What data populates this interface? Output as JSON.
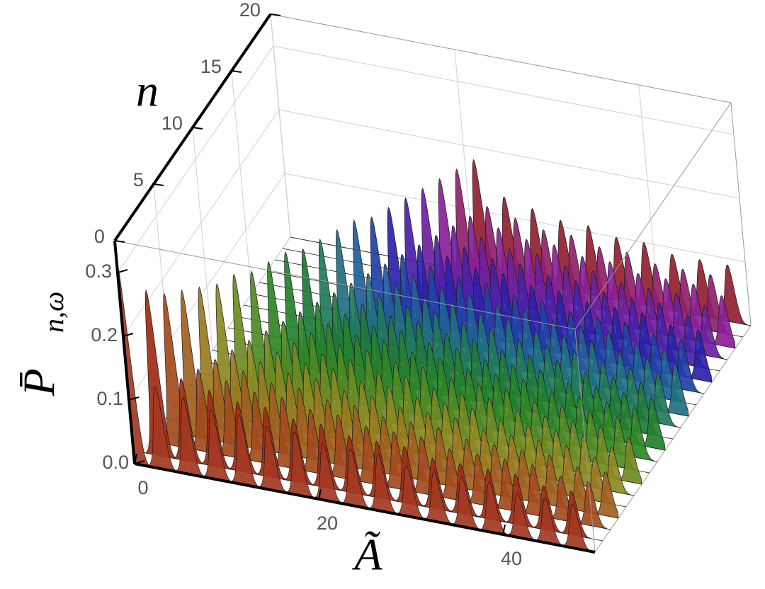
{
  "chart_data": {
    "type": "ridge3d",
    "xlabel": "Ã",
    "ylabel": "n",
    "zlabel": "P̄",
    "zlabel_sub": "n,ω",
    "xlim": [
      0,
      50
    ],
    "ylim": [
      0,
      20
    ],
    "zlim": [
      0,
      0.35
    ],
    "xticks": [
      0,
      20,
      40
    ],
    "yticks": [
      0,
      5,
      10,
      15,
      20
    ],
    "zticks": [
      {
        "value": 0,
        "label": "0.0"
      },
      0.1,
      0.2,
      0.3
    ],
    "grid": true,
    "series": [
      {
        "n": 0,
        "color": "#a33a22",
        "x": [
          0,
          3,
          6,
          9,
          12,
          15,
          18,
          21,
          24,
          27,
          30,
          33,
          36,
          39,
          42,
          45,
          48
        ],
        "values": [
          0.32,
          0.13,
          0.12,
          0.11,
          0.11,
          0.1,
          0.1,
          0.09,
          0.09,
          0.09,
          0.08,
          0.08,
          0.08,
          0.08,
          0.07,
          0.07,
          0.07
        ]
      },
      {
        "n": 1,
        "color": "#9e2a14",
        "x": [
          2,
          5,
          8,
          11,
          14,
          17,
          20,
          23,
          26,
          29,
          32,
          35,
          38,
          41,
          44,
          47
        ],
        "values": [
          0.26,
          0.13,
          0.12,
          0.11,
          0.11,
          0.1,
          0.1,
          0.09,
          0.09,
          0.09,
          0.08,
          0.08,
          0.08,
          0.08,
          0.07,
          0.07
        ]
      },
      {
        "n": 2,
        "color": "#a34a1c",
        "x": [
          3,
          6,
          9,
          12,
          15,
          18,
          21,
          24,
          27,
          30,
          33,
          36,
          39,
          42,
          45,
          48
        ],
        "values": [
          0.24,
          0.13,
          0.12,
          0.11,
          0.11,
          0.1,
          0.1,
          0.09,
          0.09,
          0.09,
          0.08,
          0.08,
          0.08,
          0.08,
          0.07,
          0.07
        ]
      },
      {
        "n": 3,
        "color": "#a0601e",
        "x": [
          4,
          7,
          10,
          13,
          16,
          19,
          22,
          25,
          28,
          31,
          34,
          37,
          40,
          43,
          46,
          49
        ],
        "values": [
          0.23,
          0.13,
          0.12,
          0.11,
          0.11,
          0.1,
          0.1,
          0.09,
          0.09,
          0.09,
          0.08,
          0.08,
          0.08,
          0.08,
          0.07,
          0.07
        ]
      },
      {
        "n": 4,
        "color": "#9a7a20",
        "x": [
          5,
          8,
          11,
          14,
          17,
          20,
          23,
          26,
          29,
          32,
          35,
          38,
          41,
          44,
          47
        ],
        "values": [
          0.22,
          0.13,
          0.12,
          0.11,
          0.11,
          0.1,
          0.1,
          0.09,
          0.09,
          0.09,
          0.08,
          0.08,
          0.08,
          0.08,
          0.07
        ]
      },
      {
        "n": 5,
        "color": "#8a8a22",
        "x": [
          6,
          9,
          12,
          15,
          18,
          21,
          24,
          27,
          30,
          33,
          36,
          39,
          42,
          45,
          48
        ],
        "values": [
          0.21,
          0.13,
          0.12,
          0.11,
          0.11,
          0.1,
          0.1,
          0.09,
          0.09,
          0.09,
          0.08,
          0.08,
          0.08,
          0.08,
          0.07
        ]
      },
      {
        "n": 6,
        "color": "#6f8a22",
        "x": [
          7,
          10,
          13,
          16,
          19,
          22,
          25,
          28,
          31,
          34,
          37,
          40,
          43,
          46,
          49
        ],
        "values": [
          0.21,
          0.13,
          0.12,
          0.11,
          0.11,
          0.1,
          0.1,
          0.09,
          0.09,
          0.09,
          0.08,
          0.08,
          0.08,
          0.08,
          0.07
        ]
      },
      {
        "n": 7,
        "color": "#4f8a24",
        "x": [
          8,
          11,
          14,
          17,
          20,
          23,
          26,
          29,
          32,
          35,
          38,
          41,
          44,
          47
        ],
        "values": [
          0.2,
          0.13,
          0.12,
          0.11,
          0.11,
          0.1,
          0.1,
          0.09,
          0.09,
          0.09,
          0.08,
          0.08,
          0.08,
          0.08
        ]
      },
      {
        "n": 8,
        "color": "#2f8626",
        "x": [
          9,
          12,
          15,
          18,
          21,
          24,
          27,
          30,
          33,
          36,
          39,
          42,
          45,
          48
        ],
        "values": [
          0.2,
          0.13,
          0.12,
          0.11,
          0.11,
          0.1,
          0.1,
          0.09,
          0.09,
          0.09,
          0.08,
          0.08,
          0.08,
          0.08
        ]
      },
      {
        "n": 9,
        "color": "#23802c",
        "x": [
          10,
          13,
          16,
          19,
          22,
          25,
          28,
          31,
          34,
          37,
          40,
          43,
          46,
          49
        ],
        "values": [
          0.2,
          0.13,
          0.12,
          0.11,
          0.11,
          0.1,
          0.1,
          0.09,
          0.09,
          0.09,
          0.08,
          0.08,
          0.08,
          0.08
        ]
      },
      {
        "n": 10,
        "color": "#1f7a3a",
        "x": [
          11,
          14,
          17,
          20,
          23,
          26,
          29,
          32,
          35,
          38,
          41,
          44,
          47
        ],
        "values": [
          0.19,
          0.13,
          0.12,
          0.11,
          0.11,
          0.1,
          0.1,
          0.09,
          0.09,
          0.09,
          0.08,
          0.08,
          0.08
        ]
      },
      {
        "n": 11,
        "color": "#1f7a5a",
        "x": [
          12,
          15,
          18,
          21,
          24,
          27,
          30,
          33,
          36,
          39,
          42,
          45,
          48
        ],
        "values": [
          0.19,
          0.13,
          0.12,
          0.11,
          0.11,
          0.1,
          0.1,
          0.09,
          0.09,
          0.09,
          0.08,
          0.08,
          0.08
        ]
      },
      {
        "n": 12,
        "color": "#1f7080",
        "x": [
          13,
          16,
          19,
          22,
          25,
          28,
          31,
          34,
          37,
          40,
          43,
          46,
          49
        ],
        "values": [
          0.19,
          0.13,
          0.12,
          0.11,
          0.11,
          0.1,
          0.1,
          0.09,
          0.09,
          0.09,
          0.08,
          0.08,
          0.08
        ]
      },
      {
        "n": 13,
        "color": "#1f5e9a",
        "x": [
          14,
          17,
          20,
          23,
          26,
          29,
          32,
          35,
          38,
          41,
          44,
          47
        ],
        "values": [
          0.19,
          0.13,
          0.12,
          0.11,
          0.11,
          0.1,
          0.1,
          0.09,
          0.09,
          0.09,
          0.08,
          0.08
        ]
      },
      {
        "n": 14,
        "color": "#1f40a8",
        "x": [
          15,
          18,
          21,
          24,
          27,
          30,
          33,
          36,
          39,
          42,
          45,
          48
        ],
        "values": [
          0.18,
          0.13,
          0.12,
          0.11,
          0.11,
          0.1,
          0.1,
          0.09,
          0.09,
          0.09,
          0.08,
          0.08
        ]
      },
      {
        "n": 15,
        "color": "#2a22a8",
        "x": [
          16,
          19,
          22,
          25,
          28,
          31,
          34,
          37,
          40,
          43,
          46,
          49
        ],
        "values": [
          0.18,
          0.13,
          0.12,
          0.11,
          0.11,
          0.1,
          0.1,
          0.09,
          0.09,
          0.09,
          0.08,
          0.08
        ]
      },
      {
        "n": 16,
        "color": "#4a1fa8",
        "x": [
          17,
          20,
          23,
          26,
          29,
          32,
          35,
          38,
          41,
          44,
          47
        ],
        "values": [
          0.18,
          0.13,
          0.12,
          0.11,
          0.11,
          0.1,
          0.1,
          0.09,
          0.09,
          0.09,
          0.08
        ]
      },
      {
        "n": 17,
        "color": "#6c1fa0",
        "x": [
          18,
          21,
          24,
          27,
          30,
          33,
          36,
          39,
          42,
          45,
          48
        ],
        "values": [
          0.18,
          0.13,
          0.12,
          0.11,
          0.11,
          0.1,
          0.1,
          0.09,
          0.09,
          0.09,
          0.08
        ]
      },
      {
        "n": 18,
        "color": "#8a1f98",
        "x": [
          19,
          22,
          25,
          28,
          31,
          34,
          37,
          40,
          43,
          46,
          49
        ],
        "values": [
          0.18,
          0.13,
          0.12,
          0.11,
          0.11,
          0.1,
          0.1,
          0.09,
          0.09,
          0.09,
          0.08
        ]
      },
      {
        "n": 19,
        "color": "#901f6a",
        "x": [
          20,
          23,
          26,
          29,
          32,
          35,
          38,
          41,
          44,
          47
        ],
        "values": [
          0.18,
          0.13,
          0.12,
          0.11,
          0.11,
          0.1,
          0.1,
          0.09,
          0.09,
          0.09
        ]
      },
      {
        "n": 20,
        "color": "#901f30",
        "x": [
          21,
          24,
          27,
          30,
          33,
          36,
          39,
          42,
          45,
          48
        ],
        "values": [
          0.18,
          0.13,
          0.12,
          0.11,
          0.11,
          0.1,
          0.1,
          0.09,
          0.09,
          0.09
        ]
      }
    ]
  }
}
